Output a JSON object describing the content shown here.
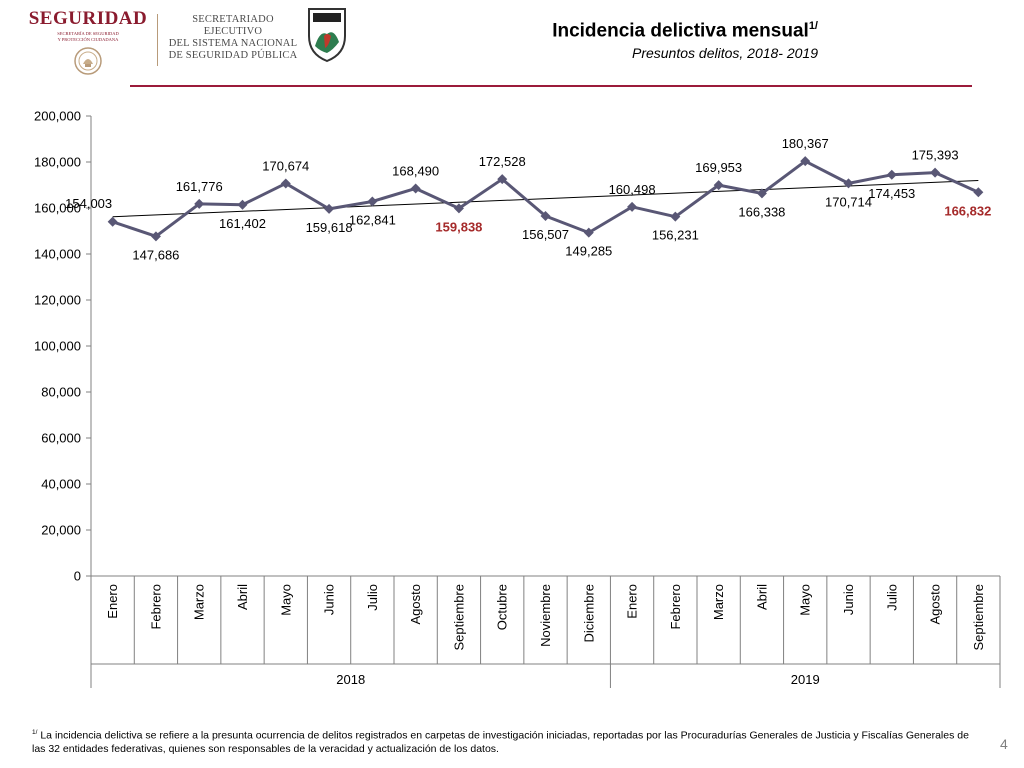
{
  "header": {
    "brand_word": "SEGURIDAD",
    "brand_sub_1": "SECRETARÍA DE SEGURIDAD",
    "brand_sub_2": "Y PROTECCIÓN CIUDADANA",
    "secretariado_1": "SECRETARIADO EJECUTIVO",
    "secretariado_2": "DEL SISTEMA NACIONAL",
    "secretariado_3": "DE SEGURIDAD PÚBLICA",
    "title": "Incidencia delictiva mensual",
    "title_superscript": "1/",
    "subtitle": "Presuntos delitos, 2018- 2019"
  },
  "colors": {
    "brand": "#8a1b2e",
    "rule": "#9b1b3a",
    "series_line": "#595775",
    "highlight_label": "#a52a2a",
    "gridline": "#d9d9d9"
  },
  "chart_data": {
    "type": "line",
    "title": "Incidencia delictiva mensual",
    "subtitle": "Presuntos delitos, 2018- 2019",
    "categories": [
      "Enero",
      "Febrero",
      "Marzo",
      "Abril",
      "Mayo",
      "Junio",
      "Julio",
      "Agosto",
      "Septiembre",
      "Octubre",
      "Noviembre",
      "Diciembre",
      "Enero",
      "Febrero",
      "Marzo",
      "Abril",
      "Mayo",
      "Junio",
      "Julio",
      "Agosto",
      "Septiembre"
    ],
    "groups": [
      {
        "label": "2018",
        "count": 12
      },
      {
        "label": "2019",
        "count": 9
      }
    ],
    "series": [
      {
        "values": [
          154003,
          147686,
          161776,
          161402,
          170674,
          159618,
          162841,
          168490,
          159838,
          172528,
          156507,
          149285,
          160498,
          156231,
          169953,
          166338,
          180367,
          170714,
          174453,
          175393,
          166832
        ],
        "labels": [
          "154,003",
          "147,686",
          "161,776",
          "161,402",
          "170,674",
          "159,618",
          "162,841",
          "168,490",
          "159,838",
          "172,528",
          "156,507",
          "149,285",
          "160,498",
          "156,231",
          "169,953",
          "166,338",
          "180,367",
          "170,714",
          "174,453",
          "175,393",
          "166,832"
        ],
        "highlighted": [
          8,
          20
        ],
        "trendline": "linear"
      }
    ],
    "ylim": [
      0,
      200000
    ],
    "yticks": [
      0,
      20000,
      40000,
      60000,
      80000,
      100000,
      120000,
      140000,
      160000,
      180000,
      200000
    ],
    "ytick_labels": [
      "0",
      "20,000",
      "40,000",
      "60,000",
      "80,000",
      "100,000",
      "120,000",
      "140,000",
      "160,000",
      "180,000",
      "200,000"
    ],
    "grid": false,
    "legend": "none",
    "marker": "diamond"
  },
  "footnote": {
    "superscript": "1/",
    "text": "La incidencia delictiva se refiere a la presunta ocurrencia de delitos registrados en carpetas de investigación iniciadas, reportadas por las Procuradurías Generales de Justicia y Fiscalías Generales de las 32 entidades federativas, quienes son responsables de la veracidad y actualización de los datos."
  },
  "page_number": "4"
}
